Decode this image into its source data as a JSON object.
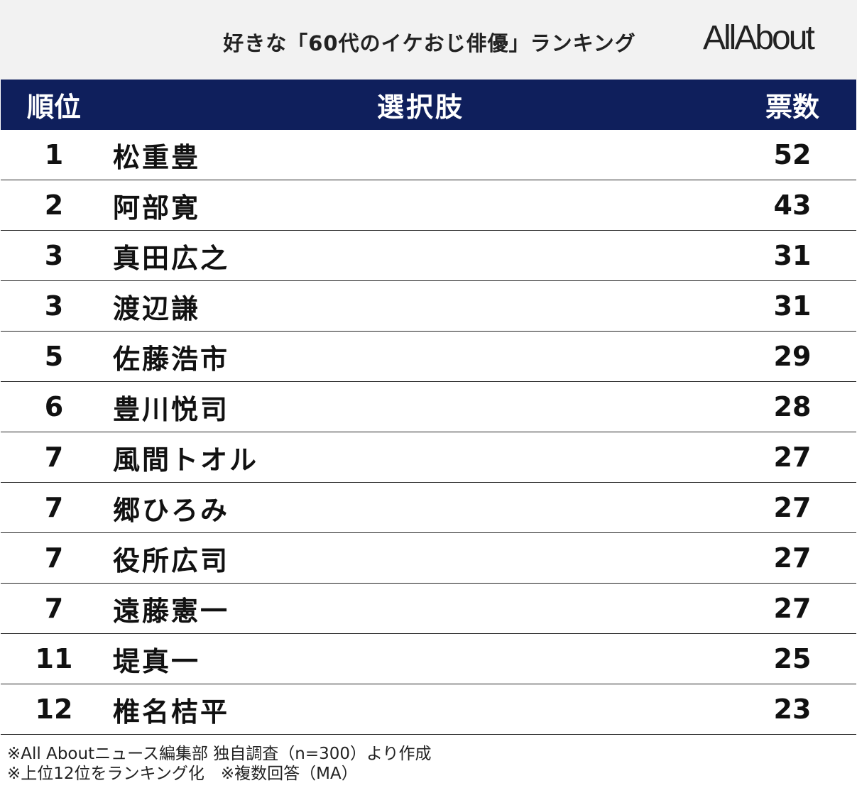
{
  "header": {
    "title": "好きな「60代のイケおじ俳優」ランキング",
    "logo": "AllAbout"
  },
  "table": {
    "columns": [
      "順位",
      "選択肢",
      "票数"
    ],
    "rows": [
      [
        "1",
        "松重豊",
        "52"
      ],
      [
        "2",
        "阿部寛",
        "43"
      ],
      [
        "3",
        "真田広之",
        "31"
      ],
      [
        "3",
        "渡辺謙",
        "31"
      ],
      [
        "5",
        "佐藤浩市",
        "29"
      ],
      [
        "6",
        "豊川悦司",
        "28"
      ],
      [
        "7",
        "風間トオル",
        "27"
      ],
      [
        "7",
        "郷ひろみ",
        "27"
      ],
      [
        "7",
        "役所広司",
        "27"
      ],
      [
        "7",
        "遠藤憲一",
        "27"
      ],
      [
        "11",
        "堤真一",
        "25"
      ],
      [
        "12",
        "椎名桔平",
        "23"
      ]
    ]
  },
  "footnotes": [
    "※All Aboutニュース編集部 独自調査（n=300）より作成",
    "※上位12位をランキング化　※複数回答（MA）"
  ]
}
